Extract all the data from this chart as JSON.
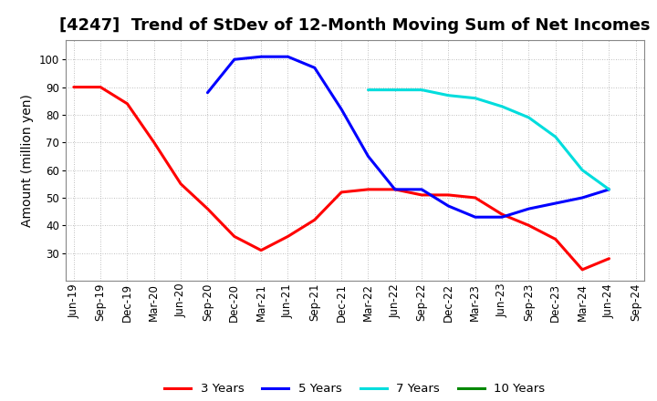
{
  "title": "[4247]  Trend of StDev of 12-Month Moving Sum of Net Incomes",
  "ylabel": "Amount (million yen)",
  "background_color": "#ffffff",
  "grid_color": "#aaaaaa",
  "x_labels": [
    "Jun-19",
    "Sep-19",
    "Dec-19",
    "Mar-20",
    "Jun-20",
    "Sep-20",
    "Dec-20",
    "Mar-21",
    "Jun-21",
    "Sep-21",
    "Dec-21",
    "Mar-22",
    "Jun-22",
    "Sep-22",
    "Dec-22",
    "Mar-23",
    "Jun-23",
    "Sep-23",
    "Dec-23",
    "Mar-24",
    "Jun-24",
    "Sep-24"
  ],
  "series": {
    "3 Years": {
      "color": "#ff0000",
      "data_x": [
        0,
        1,
        2,
        3,
        4,
        5,
        6,
        7,
        8,
        9,
        10,
        11,
        12,
        13,
        14,
        15,
        16,
        17,
        18,
        19,
        20
      ],
      "data_y": [
        90,
        90,
        84,
        70,
        55,
        46,
        36,
        31,
        36,
        42,
        52,
        53,
        53,
        51,
        51,
        50,
        44,
        40,
        35,
        24,
        28
      ]
    },
    "5 Years": {
      "color": "#0000ff",
      "data_x": [
        5,
        6,
        7,
        8,
        9,
        10,
        11,
        12,
        13,
        14,
        15,
        16,
        17,
        18,
        19,
        20
      ],
      "data_y": [
        88,
        100,
        101,
        101,
        97,
        82,
        65,
        53,
        53,
        47,
        43,
        43,
        46,
        48,
        50,
        53
      ]
    },
    "7 Years": {
      "color": "#00dddd",
      "data_x": [
        11,
        12,
        13,
        14,
        15,
        16,
        17,
        18,
        19,
        20
      ],
      "data_y": [
        89,
        89,
        89,
        87,
        86,
        83,
        79,
        72,
        60,
        53
      ]
    },
    "10 Years": {
      "color": "#008800",
      "data_x": [],
      "data_y": []
    }
  },
  "ylim": [
    20,
    107
  ],
  "yticks": [
    30,
    40,
    50,
    60,
    70,
    80,
    90,
    100
  ],
  "title_fontsize": 13,
  "axis_label_fontsize": 10,
  "tick_fontsize": 8.5,
  "legend_fontsize": 9.5
}
